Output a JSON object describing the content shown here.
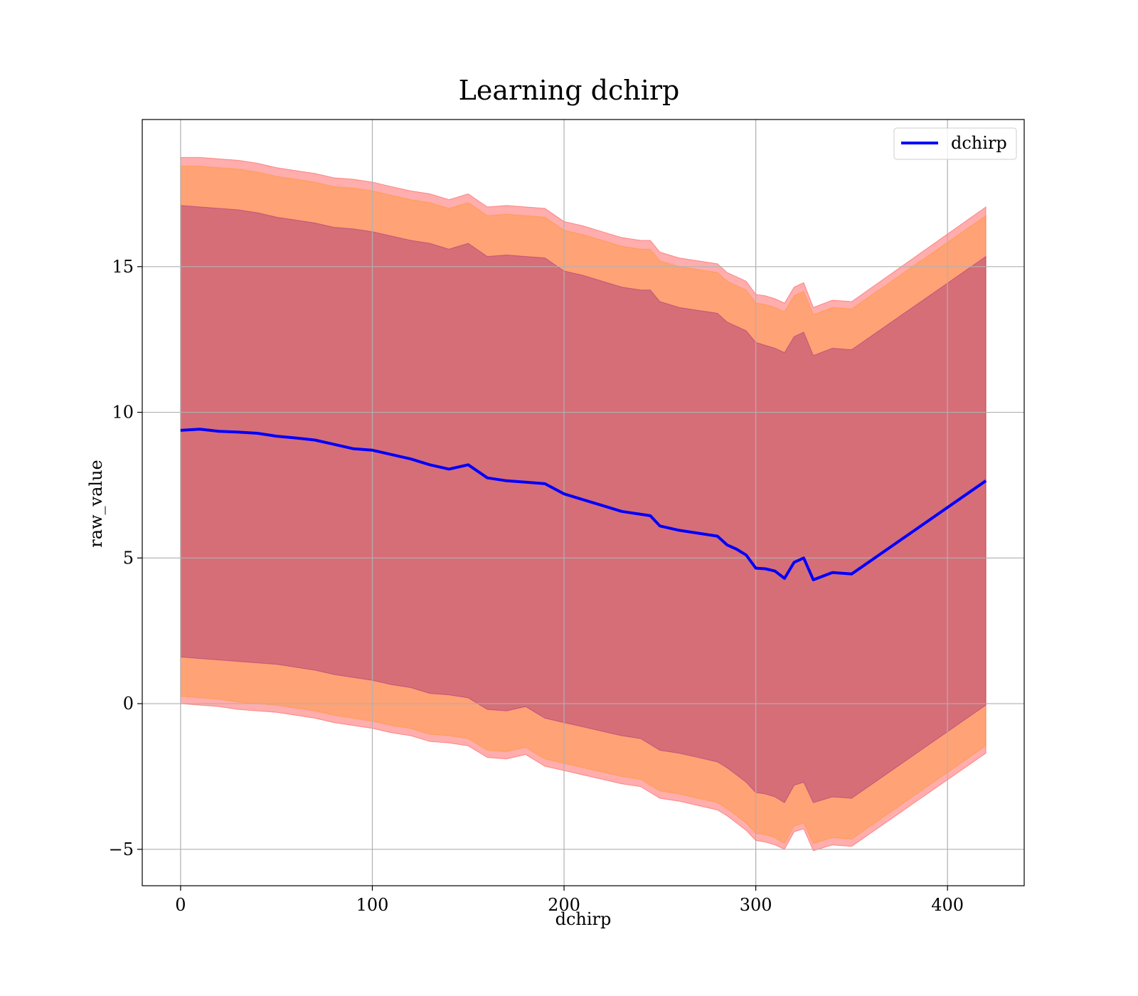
{
  "chart_data": {
    "type": "area",
    "title": "Learning dchirp",
    "xlabel": "dchirp",
    "ylabel": "raw_value",
    "xlim": [
      -20,
      440
    ],
    "ylim": [
      -6.25,
      20.05
    ],
    "xticks": [
      0,
      100,
      200,
      300,
      400
    ],
    "xtick_labels": [
      "0",
      "100",
      "200",
      "300",
      "400"
    ],
    "yticks": [
      -5,
      0,
      5,
      10,
      15
    ],
    "ytick_labels": [
      "−5",
      "0",
      "5",
      "10",
      "15"
    ],
    "grid": true,
    "legend_position": "top-right",
    "legend": [
      "dchirp"
    ],
    "x": [
      0,
      10,
      20,
      30,
      40,
      50,
      60,
      70,
      80,
      90,
      100,
      110,
      120,
      130,
      140,
      150,
      160,
      170,
      180,
      190,
      200,
      210,
      220,
      230,
      240,
      245,
      250,
      260,
      270,
      280,
      285,
      290,
      295,
      300,
      305,
      310,
      315,
      320,
      325,
      330,
      340,
      350,
      420
    ],
    "series": [
      {
        "name": "dchirp",
        "color": "#0000ff",
        "values": [
          9.38,
          9.42,
          9.35,
          9.32,
          9.28,
          9.18,
          9.12,
          9.05,
          8.9,
          8.75,
          8.7,
          8.55,
          8.4,
          8.2,
          8.05,
          8.2,
          7.75,
          7.65,
          7.6,
          7.55,
          7.2,
          7.0,
          6.8,
          6.6,
          6.5,
          6.45,
          6.1,
          5.95,
          5.85,
          5.75,
          5.45,
          5.3,
          5.1,
          4.65,
          4.63,
          4.55,
          4.3,
          4.85,
          5.0,
          4.25,
          4.5,
          4.45,
          7.65
        ]
      },
      {
        "name": "band_1sd_lower",
        "color": "#800080",
        "values": [
          1.6,
          1.55,
          1.5,
          1.45,
          1.4,
          1.35,
          1.25,
          1.15,
          1.0,
          0.9,
          0.8,
          0.65,
          0.55,
          0.35,
          0.3,
          0.2,
          -0.2,
          -0.25,
          -0.1,
          -0.5,
          -0.65,
          -0.8,
          -0.95,
          -1.1,
          -1.2,
          -1.4,
          -1.6,
          -1.7,
          -1.85,
          -2.0,
          -2.2,
          -2.45,
          -2.7,
          -3.05,
          -3.1,
          -3.2,
          -3.4,
          -2.8,
          -2.7,
          -3.4,
          -3.2,
          -3.25,
          -0.05
        ]
      },
      {
        "name": "band_1sd_upper",
        "color": "#800080",
        "values": [
          17.1,
          17.05,
          17.0,
          16.95,
          16.85,
          16.7,
          16.6,
          16.5,
          16.35,
          16.3,
          16.2,
          16.05,
          15.9,
          15.8,
          15.6,
          15.8,
          15.35,
          15.4,
          15.35,
          15.3,
          14.85,
          14.7,
          14.5,
          14.3,
          14.2,
          14.2,
          13.8,
          13.6,
          13.5,
          13.4,
          13.1,
          12.95,
          12.8,
          12.4,
          12.3,
          12.2,
          12.05,
          12.6,
          12.75,
          11.95,
          12.2,
          12.15,
          15.35
        ]
      },
      {
        "name": "band_2sd_lower",
        "color": "#ff8c00",
        "values": [
          0.25,
          0.2,
          0.15,
          0.05,
          0.0,
          -0.05,
          -0.15,
          -0.25,
          -0.4,
          -0.5,
          -0.6,
          -0.75,
          -0.85,
          -1.05,
          -1.1,
          -1.2,
          -1.6,
          -1.65,
          -1.5,
          -1.9,
          -2.05,
          -2.2,
          -2.35,
          -2.5,
          -2.6,
          -2.8,
          -3.0,
          -3.1,
          -3.25,
          -3.4,
          -3.6,
          -3.85,
          -4.1,
          -4.45,
          -4.5,
          -4.6,
          -4.8,
          -4.2,
          -4.1,
          -4.8,
          -4.6,
          -4.65,
          -1.45
        ]
      },
      {
        "name": "band_2sd_upper",
        "color": "#ff8c00",
        "values": [
          18.45,
          18.45,
          18.4,
          18.35,
          18.25,
          18.1,
          18.0,
          17.9,
          17.75,
          17.7,
          17.6,
          17.45,
          17.3,
          17.2,
          17.0,
          17.2,
          16.75,
          16.8,
          16.75,
          16.7,
          16.25,
          16.1,
          15.9,
          15.7,
          15.6,
          15.6,
          15.2,
          15.0,
          14.9,
          14.8,
          14.5,
          14.35,
          14.2,
          13.75,
          13.7,
          13.6,
          13.45,
          14.0,
          14.15,
          13.35,
          13.6,
          13.55,
          16.75
        ]
      },
      {
        "name": "band_3sd_lower",
        "color": "#ff0000",
        "values": [
          0.0,
          -0.05,
          -0.1,
          -0.2,
          -0.25,
          -0.3,
          -0.4,
          -0.5,
          -0.65,
          -0.75,
          -0.85,
          -1.0,
          -1.1,
          -1.3,
          -1.35,
          -1.45,
          -1.85,
          -1.9,
          -1.75,
          -2.15,
          -2.3,
          -2.45,
          -2.6,
          -2.75,
          -2.85,
          -3.05,
          -3.25,
          -3.35,
          -3.5,
          -3.65,
          -3.85,
          -4.1,
          -4.35,
          -4.7,
          -4.75,
          -4.85,
          -5.0,
          -4.4,
          -4.3,
          -5.05,
          -4.85,
          -4.9,
          -1.7
        ]
      },
      {
        "name": "band_3sd_upper",
        "color": "#ff0000",
        "values": [
          18.75,
          18.75,
          18.7,
          18.65,
          18.55,
          18.4,
          18.3,
          18.2,
          18.05,
          18.0,
          17.9,
          17.75,
          17.6,
          17.5,
          17.3,
          17.5,
          17.05,
          17.1,
          17.05,
          17.0,
          16.55,
          16.4,
          16.2,
          16.0,
          15.9,
          15.9,
          15.5,
          15.3,
          15.2,
          15.1,
          14.8,
          14.65,
          14.5,
          14.05,
          14.0,
          13.9,
          13.75,
          14.3,
          14.45,
          13.6,
          13.85,
          13.8,
          17.05
        ]
      }
    ]
  }
}
